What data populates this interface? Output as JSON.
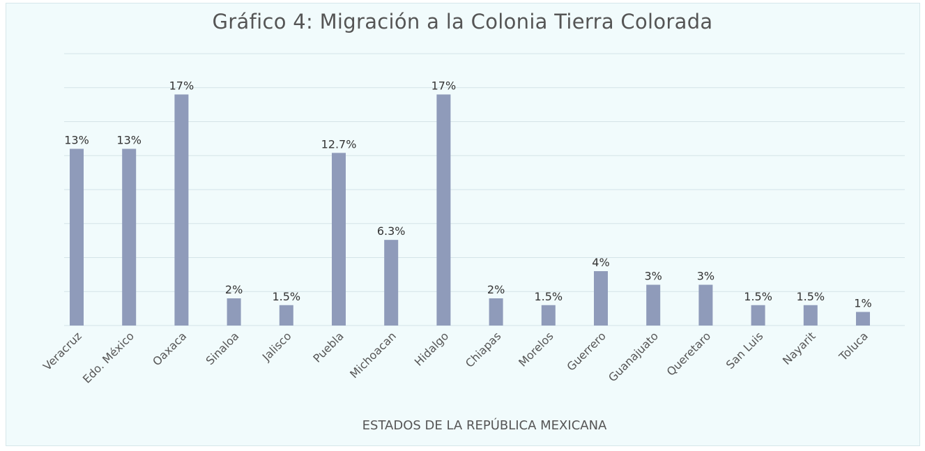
{
  "chart_data": {
    "type": "bar",
    "title": "Gráfico 4: Migración a la Colonia Tierra Colorada",
    "xlabel": "ESTADOS DE LA REPÚBLICA MEXICANA",
    "ylabel": "",
    "categories": [
      "Veracruz",
      "Edo. México",
      "Oaxaca",
      "Sinaloa",
      "Jalisco",
      "Puebla",
      "Michoacan",
      "Hidalgo",
      "Chiapas",
      "Morelos",
      "Guerrero",
      "Guanajuato",
      "Queretaro",
      "San Luis",
      "Nayarit",
      "Toluca"
    ],
    "values": [
      13,
      13,
      17,
      2,
      1.5,
      12.7,
      6.3,
      17,
      2,
      1.5,
      4,
      3,
      3,
      1.5,
      1.5,
      1
    ],
    "data_labels": [
      "13%",
      "13%",
      "17%",
      "2%",
      "1.5%",
      "12.7%",
      "6.3%",
      "17%",
      "2%",
      "1.5%",
      "4%",
      "3%",
      "3%",
      "1.5%",
      "1.5%",
      "1%"
    ],
    "ylim": [
      0,
      20
    ],
    "grid": true,
    "legend": "none",
    "colors": {
      "bar": "#8f9bba",
      "background": "#f1fbfc",
      "grid": "#d4e3e7"
    }
  }
}
